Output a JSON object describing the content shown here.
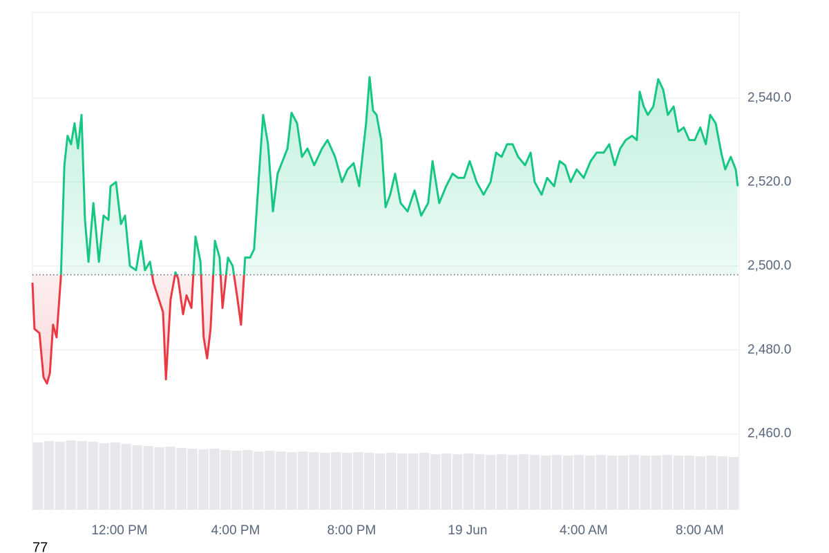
{
  "chart_data": {
    "type": "line",
    "x": [
      0,
      0.07,
      0.24,
      0.38,
      0.5,
      0.6,
      0.71,
      0.83,
      0.98,
      1.1,
      1.21,
      1.33,
      1.45,
      1.57,
      1.69,
      1.81,
      1.93,
      2.1,
      2.29,
      2.45,
      2.62,
      2.69,
      2.88,
      3.05,
      3.19,
      3.36,
      3.57,
      3.74,
      3.88,
      4.05,
      4.17,
      4.36,
      4.5,
      4.6,
      4.76,
      4.93,
      5.02,
      5.19,
      5.31,
      5.48,
      5.62,
      5.79,
      5.9,
      6.02,
      6.14,
      6.29,
      6.45,
      6.55,
      6.74,
      6.9,
      7.07,
      7.19,
      7.33,
      7.5,
      7.64,
      7.83,
      7.95,
      8.12,
      8.29,
      8.45,
      8.62,
      8.79,
      8.93,
      9.12,
      9.29,
      9.48,
      9.71,
      9.98,
      10.17,
      10.43,
      10.67,
      10.86,
      11.07,
      11.26,
      11.5,
      11.62,
      11.74,
      11.86,
      12.02,
      12.17,
      12.33,
      12.5,
      12.69,
      12.93,
      13.17,
      13.4,
      13.64,
      13.79,
      14.02,
      14.26,
      14.48,
      14.67,
      14.88,
      15.07,
      15.31,
      15.55,
      15.79,
      15.98,
      16.17,
      16.36,
      16.55,
      16.74,
      16.98,
      17.17,
      17.31,
      17.55,
      17.74,
      17.98,
      18.17,
      18.36,
      18.55,
      18.76,
      19,
      19.24,
      19.45,
      19.69,
      19.88,
      20.07,
      20.26,
      20.45,
      20.67,
      20.83,
      20.93,
      21.07,
      21.21,
      21.4,
      21.57,
      21.74,
      21.9,
      22.1,
      22.26,
      22.45,
      22.64,
      22.83,
      23.02,
      23.21,
      23.36,
      23.55,
      23.74,
      23.88,
      24.07,
      24.24,
      24.31
    ],
    "values": [
      2496,
      2485,
      2484,
      2473.5,
      2472,
      2474.5,
      2486,
      2483,
      2497.6,
      2524,
      2531,
      2529,
      2534,
      2528,
      2536,
      2511,
      2501,
      2515,
      2501,
      2512,
      2511,
      2519,
      2520,
      2510,
      2512,
      2500,
      2499,
      2506,
      2499,
      2501,
      2496,
      2492,
      2489,
      2473,
      2492,
      2498.5,
      2497,
      2488.5,
      2493,
      2490,
      2507,
      2501,
      2483,
      2478,
      2485,
      2506,
      2502,
      2490,
      2502,
      2500,
      2492,
      2486,
      2502,
      2502,
      2504,
      2524,
      2536,
      2529,
      2513,
      2522,
      2525,
      2528,
      2536.5,
      2534,
      2526,
      2528,
      2524,
      2528,
      2530,
      2526,
      2520,
      2523,
      2524.5,
      2519,
      2534,
      2545,
      2537,
      2536,
      2530,
      2514,
      2517,
      2522,
      2515,
      2513,
      2518,
      2512,
      2515,
      2525,
      2515,
      2519,
      2522,
      2521,
      2521,
      2525,
      2520,
      2517,
      2520,
      2527,
      2526,
      2529,
      2529,
      2526,
      2524,
      2527,
      2520,
      2517,
      2521,
      2519,
      2525,
      2524,
      2520,
      2523,
      2521,
      2525,
      2527,
      2527,
      2529,
      2524,
      2528,
      2530,
      2531,
      2530,
      2541.5,
      2538,
      2536,
      2538,
      2544.5,
      2542,
      2536,
      2538,
      2532,
      2533,
      2530,
      2530,
      2533,
      2529,
      2536,
      2534,
      2527,
      2523,
      2526,
      2523,
      2519
    ],
    "baseline": 2497.9,
    "up_color": "#16c784",
    "down_color": "#ea3943",
    "xlim": [
      0,
      24.36
    ],
    "xticks": [
      {
        "value": 3,
        "label": "12:00 PM"
      },
      {
        "value": 7,
        "label": "4:00 PM"
      },
      {
        "value": 11,
        "label": "8:00 PM"
      },
      {
        "value": 15,
        "label": "19 Jun"
      },
      {
        "value": 19,
        "label": "4:00 AM"
      },
      {
        "value": 23,
        "label": "8:00 AM"
      }
    ],
    "ylim": [
      2442,
      2560.4
    ],
    "yticks": [
      {
        "value": 2460,
        "label": "2,460.0"
      },
      {
        "value": 2480,
        "label": "2,480.0"
      },
      {
        "value": 2500,
        "label": "2,500.0"
      },
      {
        "value": 2520,
        "label": "2,520.0"
      },
      {
        "value": 2540,
        "label": "2,540.0"
      }
    ],
    "grid": true,
    "volume": {
      "axis": "y2",
      "color": "#e6e8ec",
      "values": [
        97,
        99,
        98,
        100,
        99,
        98,
        96,
        97,
        95,
        93,
        92,
        90,
        91,
        89,
        88,
        87,
        88,
        86,
        85,
        86,
        84,
        85,
        84,
        83,
        84,
        83,
        82,
        83,
        82,
        83,
        82,
        81,
        82,
        81,
        81,
        82,
        80,
        81,
        80,
        81,
        80,
        79,
        80,
        79,
        80,
        79,
        78,
        79,
        78,
        79,
        78,
        79,
        78,
        78,
        79,
        78,
        78,
        79,
        78,
        78,
        77,
        78,
        77,
        76
      ]
    },
    "y2lim": [
      0,
      720
    ],
    "annotations": [
      "77"
    ]
  }
}
